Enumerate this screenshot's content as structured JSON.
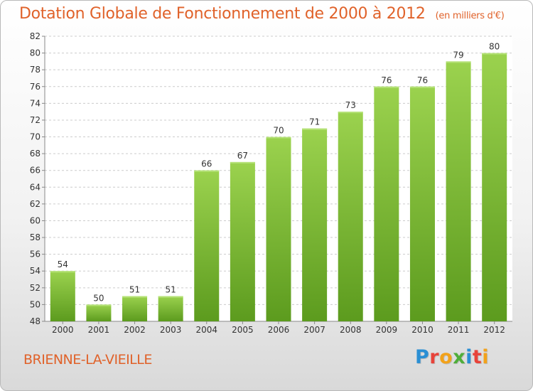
{
  "title": "Dotation Globale de Fonctionnement de 2000 à 2012",
  "subtitle": "(en milliers d'€)",
  "place": "BRIENNE-LA-VIEILLE",
  "logo": {
    "text": "Proxiti",
    "colors": [
      "#2a8fd4",
      "#e8433a",
      "#f2a21b",
      "#4fae3a",
      "#2a8fd4",
      "#e8433a",
      "#f2a21b"
    ]
  },
  "colors": {
    "bar": "#7ec03c",
    "bar_light": "#9bd24e",
    "bar_dark": "#5c9b1e",
    "title": "#e0622a"
  },
  "chart_data": {
    "type": "bar",
    "categories": [
      "2000",
      "2001",
      "2002",
      "2003",
      "2004",
      "2005",
      "2006",
      "2007",
      "2008",
      "2009",
      "2010",
      "2011",
      "2012"
    ],
    "values": [
      54,
      50,
      51,
      51,
      66,
      67,
      70,
      71,
      73,
      76,
      76,
      79,
      80
    ],
    "title": "Dotation Globale de Fonctionnement de 2000 à 2012",
    "xlabel": "",
    "ylabel": "",
    "ylim": [
      48,
      82
    ],
    "yticks": [
      48,
      50,
      52,
      54,
      56,
      58,
      60,
      62,
      64,
      66,
      68,
      70,
      72,
      74,
      76,
      78,
      80,
      82
    ],
    "grid": true,
    "legend": "none"
  }
}
